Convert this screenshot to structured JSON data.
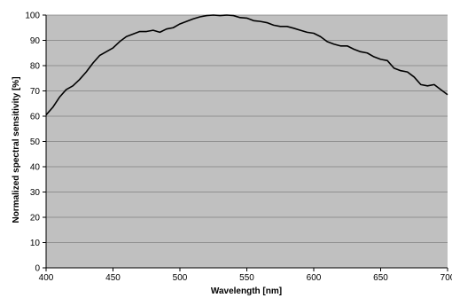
{
  "chart_data": {
    "type": "line",
    "title": "",
    "xlabel": "Wavelength [nm]",
    "ylabel": "Normalized spectral sensitivity [%]",
    "xlim": [
      400,
      700
    ],
    "ylim": [
      0,
      100
    ],
    "x_ticks": [
      400,
      450,
      500,
      550,
      600,
      650,
      700
    ],
    "y_ticks": [
      0,
      10,
      20,
      30,
      40,
      50,
      60,
      70,
      80,
      90,
      100
    ],
    "x_tick_labels": [
      "400",
      "450",
      "500",
      "550",
      "600",
      "650",
      "700"
    ],
    "y_tick_labels": [
      "0",
      "10",
      "20",
      "30",
      "40",
      "50",
      "60",
      "70",
      "80",
      "90",
      "100"
    ],
    "grid": "horizontal",
    "legend": "none",
    "colors": {
      "plot_background": "#c0c0c0",
      "gridline": "#808080",
      "series": "#000000",
      "text": "#000000"
    },
    "series": [
      {
        "x": [
          400,
          405,
          410,
          415,
          420,
          425,
          430,
          435,
          440,
          445,
          450,
          455,
          460,
          465,
          470,
          475,
          480,
          485,
          490,
          495,
          500,
          505,
          510,
          515,
          520,
          525,
          530,
          535,
          540,
          545,
          550,
          555,
          560,
          565,
          570,
          575,
          580,
          585,
          590,
          595,
          600,
          605,
          610,
          615,
          620,
          625,
          630,
          635,
          640,
          645,
          650,
          655,
          660,
          665,
          670,
          675,
          680,
          685,
          690,
          695,
          700
        ],
        "y": [
          60.5,
          63.5,
          67.5,
          70.5,
          72,
          74.5,
          77.5,
          81,
          84,
          85.5,
          87,
          89.5,
          91.5,
          92.5,
          93.5,
          93.5,
          94,
          93.2,
          94.5,
          95,
          96.5,
          97.5,
          98.5,
          99.3,
          99.8,
          100,
          99.8,
          100,
          99.8,
          99,
          98.8,
          97.8,
          97.5,
          97,
          96,
          95.5,
          95.5,
          94.8,
          94,
          93.2,
          92.8,
          91.5,
          89.5,
          88.5,
          87.8,
          87.8,
          86.5,
          85.5,
          85,
          83.5,
          82.5,
          82,
          79,
          78,
          77.5,
          75.5,
          72.5,
          72,
          72.5,
          70.5,
          68.5
        ]
      }
    ]
  }
}
